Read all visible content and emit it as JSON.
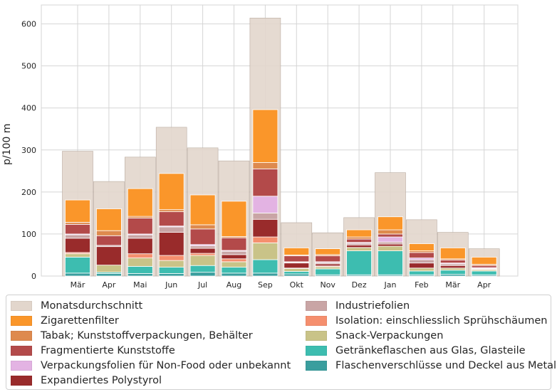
{
  "chart_data": {
    "type": "bar",
    "stacked": true,
    "ylabel": "p/100 m",
    "xlabel": "",
    "ylim": [
      0,
      645
    ],
    "yticks": [
      0,
      100,
      200,
      300,
      400,
      500,
      600
    ],
    "grid": true,
    "legend_position": "bottom",
    "categories": [
      "Mär",
      "Apr",
      "Mai",
      "Jun",
      "Jul",
      "Aug",
      "Sep",
      "Okt",
      "Nov",
      "Dez",
      "Jan",
      "Feb",
      "Mär",
      "Apr"
    ],
    "background_series": {
      "name": "Monatsdurchschnitt",
      "color": "#e2d6cc",
      "values": [
        297,
        225,
        283,
        354,
        305,
        274,
        614,
        127,
        103,
        139,
        246,
        134,
        104,
        65
      ]
    },
    "series": [
      {
        "name": "Flaschenverschlüsse und Deckel aus Metall",
        "color": "#3a9e9e",
        "values": [
          7,
          6,
          6,
          6,
          9,
          7,
          7,
          5,
          3,
          3,
          3,
          3,
          4,
          3
        ]
      },
      {
        "name": "Getränkeflaschen aus Glas, Glasteile",
        "color": "#3dbdb0",
        "values": [
          38,
          3,
          17,
          15,
          16,
          14,
          32,
          6,
          14,
          57,
          57,
          9,
          10,
          9
        ]
      },
      {
        "name": "Snack-Verpackungen",
        "color": "#c9c388",
        "values": [
          8,
          17,
          20,
          16,
          24,
          13,
          40,
          7,
          5,
          8,
          11,
          7,
          5,
          3
        ]
      },
      {
        "name": "Isolation: einschliesslich Sprühschäumen",
        "color": "#f58f6e",
        "values": [
          3,
          0,
          10,
          12,
          5,
          7,
          14,
          1,
          2,
          0,
          0,
          0,
          0,
          0
        ]
      },
      {
        "name": "Expandiertes Polystyrol",
        "color": "#992b2b",
        "values": [
          34,
          44,
          37,
          55,
          12,
          10,
          42,
          12,
          5,
          6,
          5,
          12,
          6,
          1
        ]
      },
      {
        "name": "Industriefolien",
        "color": "#c9a5a5",
        "values": [
          8,
          3,
          8,
          13,
          6,
          8,
          15,
          2,
          3,
          4,
          5,
          8,
          4,
          2
        ]
      },
      {
        "name": "Verpackungsfolien für Non-Food oder unbekannt",
        "color": "#e3b3e3",
        "values": [
          2,
          0,
          2,
          2,
          3,
          2,
          40,
          1,
          2,
          2,
          12,
          4,
          2,
          2
        ]
      },
      {
        "name": "Fragmentierte Kunststoffe",
        "color": "#b34a4a",
        "values": [
          23,
          23,
          38,
          34,
          37,
          30,
          65,
          14,
          14,
          8,
          7,
          13,
          7,
          5
        ]
      },
      {
        "name": "Tabak; Kunststoffverpackungen, Behälter",
        "color": "#de8a4e",
        "values": [
          5,
          12,
          4,
          5,
          10,
          3,
          15,
          2,
          3,
          5,
          10,
          4,
          3,
          3
        ]
      },
      {
        "name": "Zigarettenfilter",
        "color": "#fa962a",
        "values": [
          53,
          52,
          66,
          86,
          71,
          84,
          126,
          17,
          14,
          17,
          31,
          17,
          26,
          17
        ]
      }
    ]
  }
}
